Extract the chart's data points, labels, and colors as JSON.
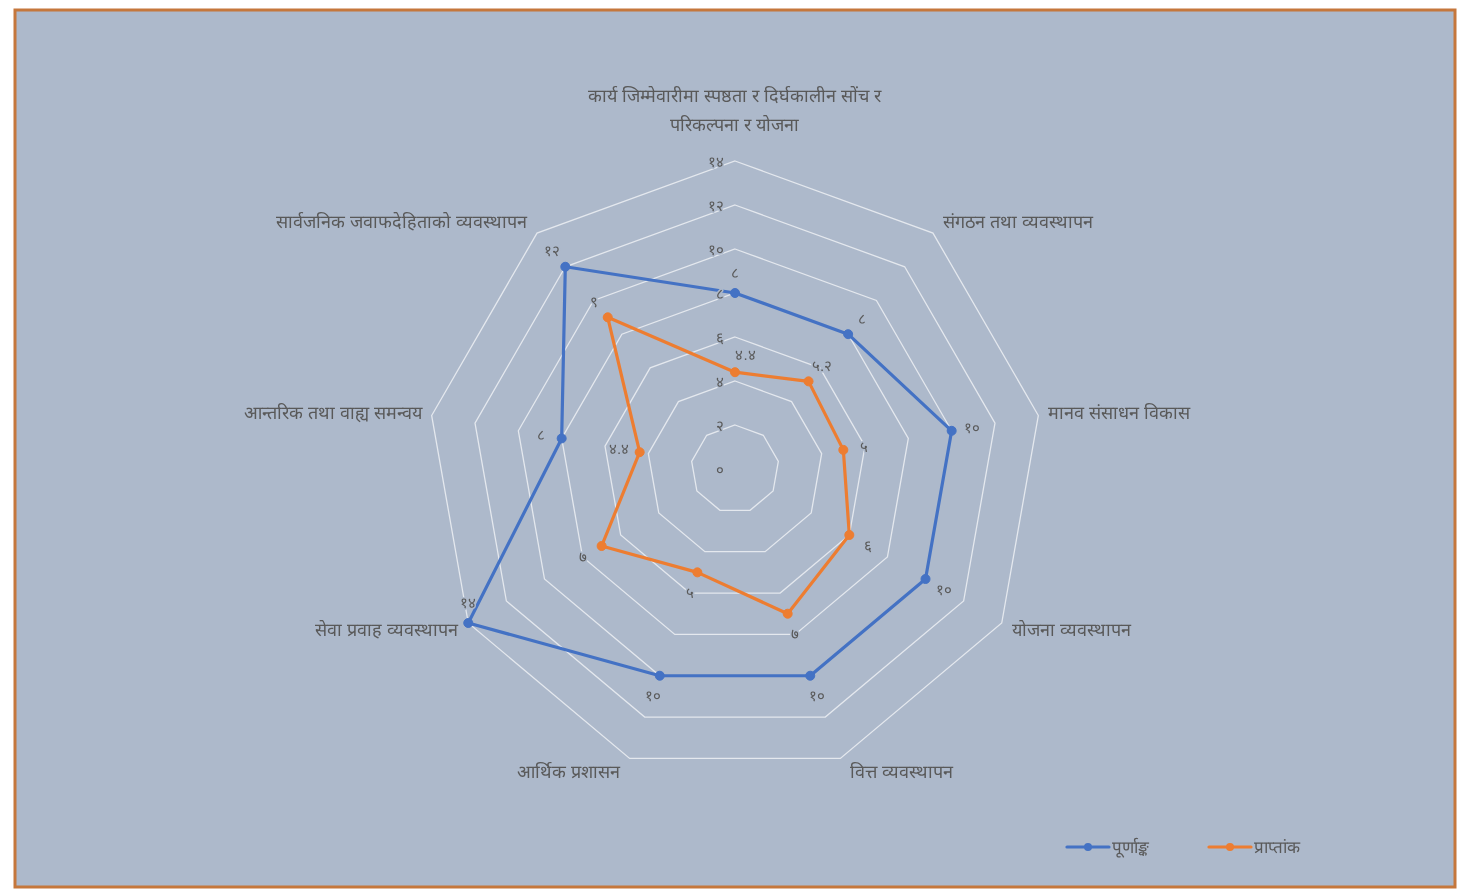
{
  "chart_data": {
    "type": "radar",
    "categories": [
      "कार्य जिम्मेवारीमा स्पष्ठता र दिर्घकालीन सोंच र परिकल्पना र योजना",
      "संगठन तथा व्यवस्थापन",
      "मानव संसाधन विकास",
      "योजना व्यवस्थापन",
      "वित्त व्यवस्थापन",
      "आर्थिक प्रशासन",
      "सेवा प्रवाह व्यवस्थापन",
      "आन्तरिक तथा वाह्य समन्वय",
      "सार्वजनिक जवाफदेहिताको व्यवस्थापन"
    ],
    "series": [
      {
        "name": "पूर्णाङ्क",
        "color": "#4472c4",
        "values": [
          8,
          8,
          10,
          10,
          10,
          10,
          14,
          8,
          12
        ],
        "value_labels": [
          "८",
          "८",
          "१०",
          "१०",
          "१०",
          "१०",
          "१४",
          "८",
          "१२"
        ]
      },
      {
        "name": "प्राप्तांक",
        "color": "#ed7d31",
        "values": [
          4.4,
          5.2,
          5,
          6,
          7,
          5,
          7,
          4.4,
          9
        ],
        "value_labels": [
          "४.४",
          "५.२",
          "५",
          "६",
          "७",
          "५",
          "७",
          "४.४",
          "९"
        ]
      }
    ],
    "ylim": [
      0,
      14
    ],
    "yticks": [
      {
        "value": 0,
        "label": "०"
      },
      {
        "value": 2,
        "label": "२"
      },
      {
        "value": 4,
        "label": "४"
      },
      {
        "value": 6,
        "label": "६"
      },
      {
        "value": 8,
        "label": "८"
      },
      {
        "value": 10,
        "label": "१०"
      },
      {
        "value": 12,
        "label": "१२"
      },
      {
        "value": 14,
        "label": "१४"
      }
    ],
    "grid": true,
    "legend": "bottom right",
    "marker": "circle",
    "line_style": "solid"
  }
}
